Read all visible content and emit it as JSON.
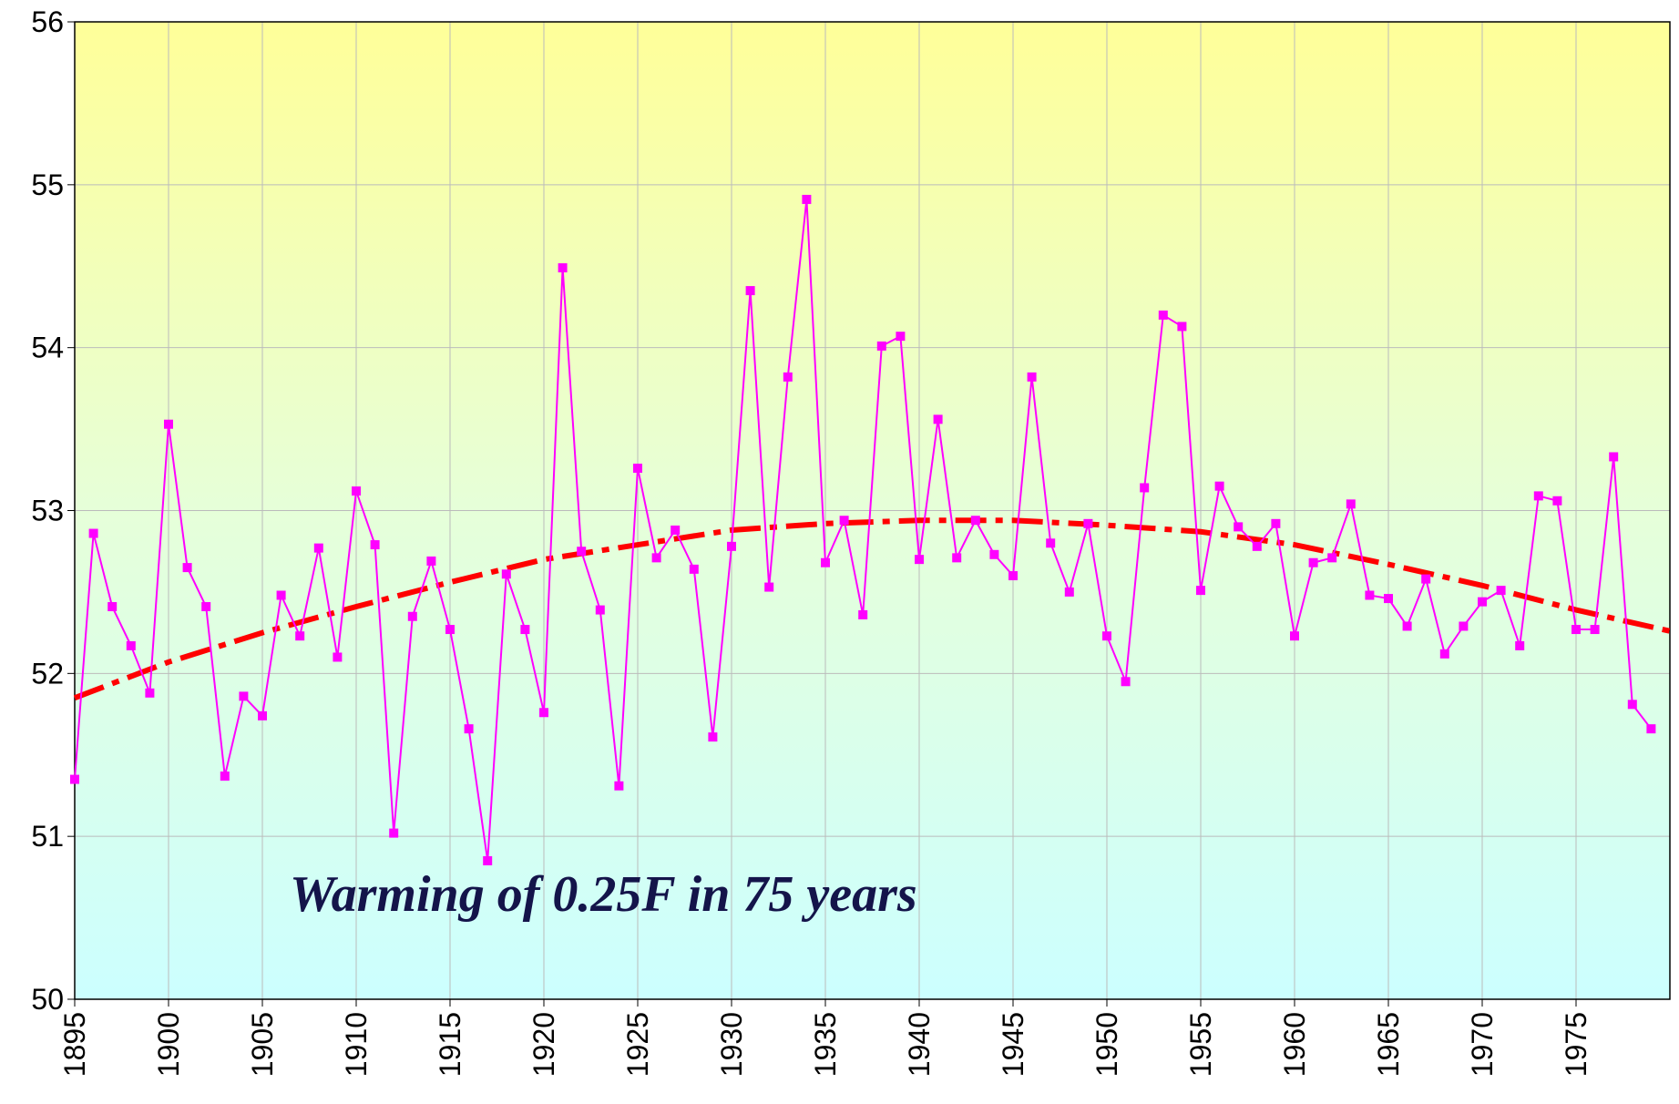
{
  "chart_data": {
    "type": "line",
    "annotation": "Warming of 0.25F in 75 years",
    "x": [
      1895,
      1896,
      1897,
      1898,
      1899,
      1900,
      1901,
      1902,
      1903,
      1904,
      1905,
      1906,
      1907,
      1908,
      1909,
      1910,
      1911,
      1912,
      1913,
      1914,
      1915,
      1916,
      1917,
      1918,
      1919,
      1920,
      1921,
      1922,
      1923,
      1924,
      1925,
      1926,
      1927,
      1928,
      1929,
      1930,
      1931,
      1932,
      1933,
      1934,
      1935,
      1936,
      1937,
      1938,
      1939,
      1940,
      1941,
      1942,
      1943,
      1944,
      1945,
      1946,
      1947,
      1948,
      1949,
      1950,
      1951,
      1952,
      1953,
      1954,
      1955,
      1956,
      1957,
      1958,
      1959,
      1960,
      1961,
      1962,
      1963,
      1964,
      1965,
      1966,
      1967,
      1968,
      1969,
      1970,
      1971,
      1972,
      1973,
      1974,
      1975,
      1976,
      1977,
      1978,
      1979
    ],
    "series": [
      {
        "color": "#ff00ff",
        "values": [
          51.35,
          52.86,
          52.41,
          52.17,
          51.88,
          53.53,
          52.65,
          52.41,
          51.37,
          51.86,
          51.74,
          52.48,
          52.23,
          52.77,
          52.1,
          53.12,
          52.79,
          51.02,
          52.35,
          52.69,
          52.27,
          51.66,
          50.85,
          52.61,
          52.27,
          51.76,
          54.49,
          52.75,
          52.39,
          51.31,
          53.26,
          52.71,
          52.88,
          52.64,
          51.61,
          52.78,
          54.35,
          52.53,
          53.82,
          54.91,
          52.68,
          52.94,
          52.36,
          54.01,
          54.07,
          52.7,
          53.56,
          52.71,
          52.94,
          52.73,
          52.6,
          53.82,
          52.8,
          52.5,
          52.92,
          52.23,
          51.95,
          53.14,
          54.2,
          54.13,
          52.51,
          53.15,
          52.9,
          52.78,
          52.92,
          52.23,
          52.68,
          52.71,
          53.04,
          52.48,
          52.46,
          52.29,
          52.58,
          52.12,
          52.29,
          52.44,
          52.51,
          52.17,
          53.09,
          53.06,
          52.27,
          52.27,
          53.33,
          51.81,
          51.66
        ]
      }
    ],
    "trend": {
      "color": "#ff0000",
      "x": [
        1895,
        1900,
        1905,
        1910,
        1915,
        1920,
        1925,
        1930,
        1935,
        1940,
        1945,
        1950,
        1955,
        1960,
        1965,
        1970,
        1975,
        1980
      ],
      "values": [
        51.85,
        52.07,
        52.25,
        52.41,
        52.56,
        52.7,
        52.79,
        52.88,
        52.92,
        52.94,
        52.94,
        52.91,
        52.87,
        52.79,
        52.67,
        52.54,
        52.39,
        52.26
      ]
    },
    "xlim": [
      1895,
      1980
    ],
    "xticks": [
      1895,
      1900,
      1905,
      1910,
      1915,
      1920,
      1925,
      1930,
      1935,
      1940,
      1945,
      1950,
      1955,
      1960,
      1965,
      1970,
      1975
    ],
    "ylim": [
      50,
      56
    ],
    "yticks": [
      50,
      51,
      52,
      53,
      54,
      55,
      56
    ],
    "grid": true
  }
}
